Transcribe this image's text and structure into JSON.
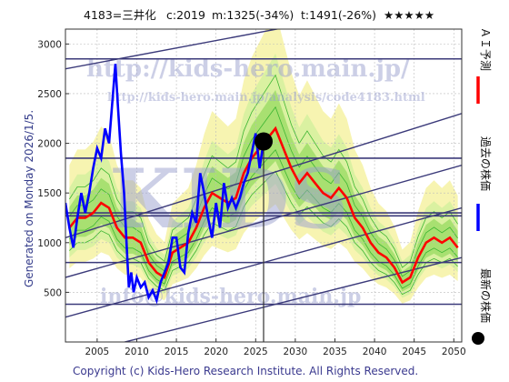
{
  "header": {
    "code_name": "4183=三井化",
    "current": "c:2019",
    "min_forecast": "m:1325(-34%)",
    "target": "t:1491(-26%)",
    "stars": "★★★★★"
  },
  "side_label": "Generated on Monday 2026/1/5.",
  "watermarks": {
    "top": "http://kids-hero.main.jp/",
    "mid": "http://kids-hero.main.jp/analysis/code4183.html",
    "big": "KIDS",
    "bottom": "info@kids-hero.main.jp"
  },
  "footer": "Copyright (c) Kids-Hero Research Institute. All Rights Reserved.",
  "legend": [
    {
      "label": "ＡＩ予測",
      "color": "#ff0000",
      "marker": "line"
    },
    {
      "label": "過去の株価",
      "color": "#0000ff",
      "marker": "line"
    },
    {
      "label": "最新の株価",
      "color": "#000000",
      "marker": "dot"
    }
  ],
  "colors": {
    "forecast": "#ff0000",
    "history": "#0000ff",
    "band_green": "#7fd24a",
    "band_light": "#d8f0a0",
    "band_yellow": "#f6f3a8",
    "trend_lines": "#3b3a7a",
    "grid": "#bbbbbb"
  },
  "chart_data": {
    "type": "line",
    "xlim": [
      2001,
      2051
    ],
    "ylim": [
      0,
      3150
    ],
    "x_ticks": [
      2005,
      2010,
      2015,
      2020,
      2025,
      2030,
      2035,
      2040,
      2045,
      2050
    ],
    "y_ticks": [
      500,
      1000,
      1500,
      2000,
      2500,
      3000
    ],
    "latest": {
      "x": 2026.0,
      "y": 2019
    },
    "horizontal_levels": [
      2850,
      1850,
      1300,
      1270,
      800,
      380
    ],
    "trend_lines": [
      {
        "x": [
          2001,
          2051
        ],
        "y": [
          2750,
          3500
        ]
      },
      {
        "x": [
          2001,
          2051
        ],
        "y": [
          1050,
          2300
        ]
      },
      {
        "x": [
          2001,
          2051
        ],
        "y": [
          650,
          1780
        ]
      },
      {
        "x": [
          2001,
          2051
        ],
        "y": [
          250,
          1350
        ]
      },
      {
        "x": [
          2001,
          2051
        ],
        "y": [
          -150,
          850
        ]
      }
    ],
    "series": [
      {
        "name": "過去の株価",
        "x": [
          2001.0,
          2001.5,
          2002.0,
          2002.5,
          2003.0,
          2003.5,
          2004.0,
          2004.5,
          2005.0,
          2005.5,
          2006.0,
          2006.5,
          2007.0,
          2007.3,
          2007.6,
          2008.0,
          2008.4,
          2008.8,
          2009.0,
          2009.3,
          2009.6,
          2010.0,
          2010.5,
          2011.0,
          2011.5,
          2012.0,
          2012.5,
          2013.0,
          2013.5,
          2014.0,
          2014.5,
          2015.0,
          2015.5,
          2016.0,
          2016.5,
          2017.0,
          2017.5,
          2018.0,
          2018.5,
          2019.0,
          2019.5,
          2020.0,
          2020.5,
          2021.0,
          2021.5,
          2022.0,
          2022.5,
          2023.0,
          2023.5,
          2024.0,
          2024.5,
          2025.0,
          2025.5,
          2026.0
        ],
        "values": [
          1400,
          1150,
          950,
          1250,
          1500,
          1300,
          1500,
          1750,
          1950,
          1850,
          2150,
          2000,
          2500,
          2800,
          2400,
          1900,
          1500,
          850,
          550,
          700,
          500,
          650,
          550,
          600,
          450,
          520,
          420,
          600,
          700,
          800,
          1050,
          1050,
          750,
          700,
          1100,
          1300,
          1200,
          1700,
          1500,
          1250,
          1050,
          1400,
          1150,
          1600,
          1350,
          1450,
          1350,
          1450,
          1600,
          1700,
          1900,
          2100,
          1750,
          2019
        ]
      },
      {
        "name": "ＡＩ予測",
        "x": [
          2001.5,
          2002.5,
          2003.5,
          2004.5,
          2005.5,
          2006.5,
          2007.5,
          2008.5,
          2009.5,
          2010.5,
          2011.5,
          2012.5,
          2013.5,
          2014.5,
          2015.5,
          2016.5,
          2017.5,
          2018.5,
          2019.5,
          2020.5,
          2021.5,
          2022.5,
          2023.5,
          2024.5,
          2025.5,
          2026.5,
          2027.5,
          2028.5,
          2029.5,
          2030.5,
          2031.5,
          2032.5,
          2033.5,
          2034.5,
          2035.5,
          2036.5,
          2037.5,
          2038.5,
          2039.5,
          2040.5,
          2041.5,
          2042.5,
          2043.5,
          2044.5,
          2045.5,
          2046.5,
          2047.5,
          2048.5,
          2049.5,
          2050.5
        ],
        "values": [
          1150,
          1250,
          1250,
          1300,
          1400,
          1350,
          1150,
          1050,
          1050,
          1000,
          800,
          700,
          650,
          900,
          950,
          1000,
          1150,
          1350,
          1500,
          1450,
          1400,
          1450,
          1700,
          1850,
          1950,
          2050,
          2150,
          1950,
          1750,
          1600,
          1700,
          1600,
          1500,
          1450,
          1550,
          1450,
          1250,
          1150,
          1000,
          900,
          850,
          750,
          600,
          650,
          850,
          1000,
          1050,
          1000,
          1050,
          950
        ]
      }
    ]
  }
}
